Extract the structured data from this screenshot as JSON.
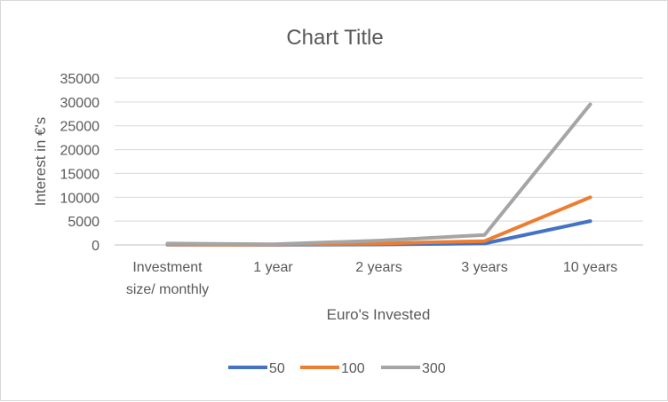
{
  "chart_data": {
    "type": "line",
    "title": "Chart Title",
    "xlabel": "Euro's Invested",
    "ylabel": "Interest in €'s",
    "categories": [
      [
        "Investment",
        "size/ monthly"
      ],
      [
        "1 year"
      ],
      [
        "2 years"
      ],
      [
        "3 years"
      ],
      [
        "10 years"
      ]
    ],
    "ylim": [
      0,
      35000
    ],
    "yticks": [
      0,
      5000,
      10000,
      15000,
      20000,
      25000,
      30000,
      35000
    ],
    "grid": true,
    "legend_position": "bottom",
    "series": [
      {
        "name": "50",
        "color": "#4472c4",
        "values": [
          50,
          30,
          100,
          300,
          5000
        ]
      },
      {
        "name": "100",
        "color": "#ed7d31",
        "values": [
          100,
          60,
          300,
          800,
          10000
        ]
      },
      {
        "name": "300",
        "color": "#a5a5a5",
        "values": [
          300,
          150,
          900,
          2100,
          29500
        ]
      }
    ]
  }
}
